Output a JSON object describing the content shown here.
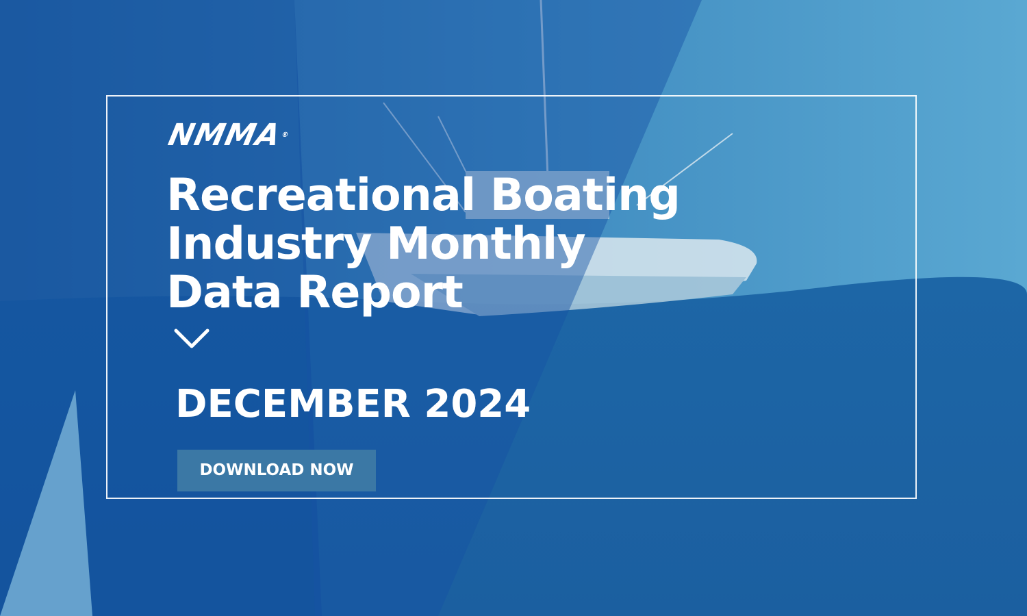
{
  "logo": {
    "text": "NMMA",
    "mark": "®"
  },
  "title": {
    "lines": [
      "Recreational Boating",
      "Industry Monthly",
      "Data Report"
    ]
  },
  "date": "DECEMBER 2024",
  "cta": {
    "label": "DOWNLOAD NOW"
  },
  "icons": {
    "chevron": "chevron-down-icon"
  },
  "colors": {
    "text": "#ffffff",
    "button": "#3b78a5",
    "frame": "#ffffff"
  }
}
